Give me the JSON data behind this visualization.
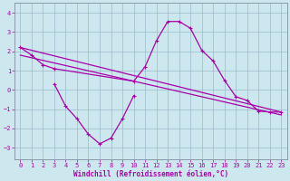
{
  "bg_color": "#cce8ee",
  "line_color": "#aa00aa",
  "grid_color": "#99bbcc",
  "xlabel": "Windchill (Refroidissement éolien,°C)",
  "xlim": [
    -0.5,
    23.5
  ],
  "ylim": [
    -3.6,
    4.5
  ],
  "yticks": [
    -3,
    -2,
    -1,
    0,
    1,
    2,
    3,
    4
  ],
  "xticks": [
    0,
    1,
    2,
    3,
    4,
    5,
    6,
    7,
    8,
    9,
    10,
    11,
    12,
    13,
    14,
    15,
    16,
    17,
    18,
    19,
    20,
    21,
    22,
    23
  ],
  "curve_peak_x": [
    0,
    1,
    2,
    3,
    10,
    11,
    12,
    13,
    14,
    15,
    16,
    17,
    18,
    19,
    20,
    21,
    22,
    23
  ],
  "curve_peak_y": [
    2.2,
    1.8,
    1.3,
    1.1,
    0.45,
    1.2,
    2.55,
    3.55,
    3.55,
    3.2,
    2.05,
    1.5,
    0.5,
    -0.35,
    -0.55,
    -1.1,
    -1.15,
    -1.15
  ],
  "curve_valley_x": [
    3,
    4,
    5,
    6,
    7,
    8,
    9,
    10
  ],
  "curve_valley_y": [
    0.3,
    -0.85,
    -1.5,
    -2.3,
    -2.8,
    -2.5,
    -1.5,
    -0.3
  ],
  "line1_x": [
    0,
    23
  ],
  "line1_y": [
    2.2,
    -1.15
  ],
  "line2_x": [
    0,
    23
  ],
  "line2_y": [
    1.8,
    -1.3
  ]
}
